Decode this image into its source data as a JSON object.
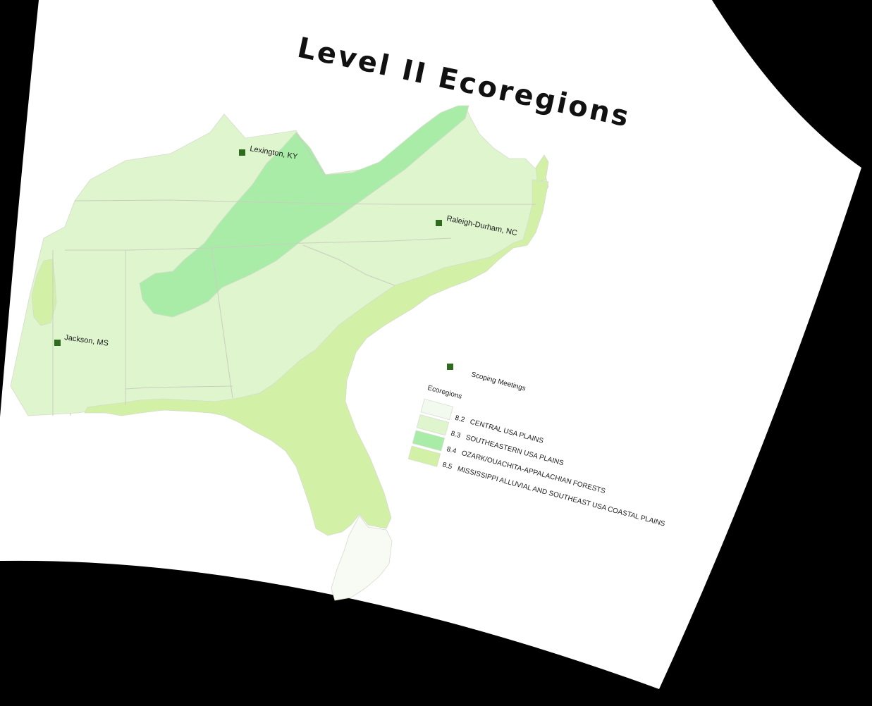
{
  "title": "Level II Ecoregions",
  "cities": [
    {
      "id": "lexington",
      "label": "Lexington, KY"
    },
    {
      "id": "raleigh",
      "label": "Raleigh-Durham, NC"
    },
    {
      "id": "jackson",
      "label": "Jackson, MS"
    }
  ],
  "legend": {
    "points_label": "Scoping Meetings",
    "heading": "Ecoregions",
    "items": [
      {
        "code": "8.2",
        "label": "CENTRAL USA PLAINS",
        "color": "#f2f9ee"
      },
      {
        "code": "8.3",
        "label": "SOUTHEASTERN USA PLAINS",
        "color": "#def5cd"
      },
      {
        "code": "8.4",
        "label": "OZARK/OUACHITA-APPALACHIAN FORESTS",
        "color": "#a8eca8"
      },
      {
        "code": "8.5",
        "label": "MISSISSIPPI ALLUVIAL AND SOUTHEAST USA COASTAL PLAINS",
        "color": "#d2f0a6"
      }
    ]
  },
  "colors": {
    "background": "#000000",
    "paper": "#ffffff",
    "marker": "#2f6b1f",
    "se_plains": "#def5cd",
    "appalachian": "#a8eca8",
    "coastal": "#d2f0a6"
  }
}
